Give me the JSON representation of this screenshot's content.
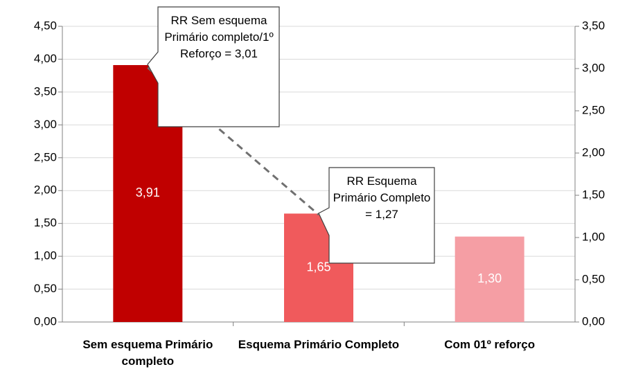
{
  "chart_data": {
    "type": "bar",
    "categories": [
      "Sem esquema Primário completo",
      "Esquema Primário Completo",
      "Com 01º reforço"
    ],
    "values": [
      3.91,
      1.65,
      1.3
    ],
    "value_labels": [
      "3,91",
      "1,65",
      "1,30"
    ],
    "colors": [
      "#c00000",
      "#f05a5c",
      "#f59ea4"
    ],
    "ylim": [
      0,
      4.5
    ],
    "yticks": [
      {
        "value": 0,
        "label": "0,00"
      },
      {
        "value": 0.5,
        "label": "0,50"
      },
      {
        "value": 1,
        "label": "1,00"
      },
      {
        "value": 1.5,
        "label": "1,50"
      },
      {
        "value": 2,
        "label": "2,00"
      },
      {
        "value": 2.5,
        "label": "2,50"
      },
      {
        "value": 3,
        "label": "3,00"
      },
      {
        "value": 3.5,
        "label": "3,50"
      },
      {
        "value": 4,
        "label": "4,00"
      },
      {
        "value": 4.5,
        "label": "4,50"
      }
    ],
    "y2lim": [
      0,
      3.5
    ],
    "y2ticks": [
      {
        "value": 0,
        "label": "0,00"
      },
      {
        "value": 0.5,
        "label": "0,50"
      },
      {
        "value": 1,
        "label": "1,00"
      },
      {
        "value": 1.5,
        "label": "1,50"
      },
      {
        "value": 2,
        "label": "2,00"
      },
      {
        "value": 2.5,
        "label": "2,50"
      },
      {
        "value": 3,
        "label": "3,00"
      },
      {
        "value": 3.5,
        "label": "3,50"
      }
    ],
    "grid": true,
    "series": [
      {
        "axis": "y2",
        "color": "#707070",
        "dashed": true,
        "values": [
          3.01,
          1.27,
          null
        ]
      }
    ],
    "annotations": [
      "RR Sem esquema Primário completo/1º Reforço = 3,01",
      "RR Esquema Primário Completo = 1,27"
    ]
  }
}
